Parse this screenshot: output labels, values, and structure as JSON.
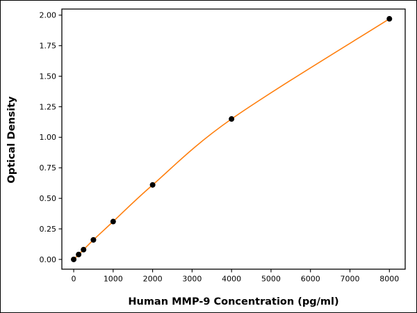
{
  "chart": {
    "background": "#ffffff",
    "line_color": "#ff7f0e",
    "point_color": "#000000",
    "axis_color": "#000000",
    "text_color": "#000000"
  },
  "chart_data": {
    "type": "line",
    "title": "",
    "xlabel": "Human MMP-9 Concentration (pg/ml)",
    "ylabel": "Optical Density",
    "x": [
      0,
      125,
      250,
      500,
      1000,
      2000,
      4000,
      8000
    ],
    "y": [
      0.0,
      0.04,
      0.08,
      0.16,
      0.31,
      0.61,
      1.15,
      1.97
    ],
    "xlim": [
      -300,
      8400
    ],
    "ylim": [
      -0.08,
      2.05
    ],
    "xticks": [
      0,
      1000,
      2000,
      3000,
      4000,
      5000,
      6000,
      7000,
      8000
    ],
    "yticks": [
      0.0,
      0.25,
      0.5,
      0.75,
      1.0,
      1.25,
      1.5,
      1.75,
      2.0
    ],
    "grid": false,
    "legend": null,
    "marker": "circle",
    "series_name": "standard-curve"
  }
}
